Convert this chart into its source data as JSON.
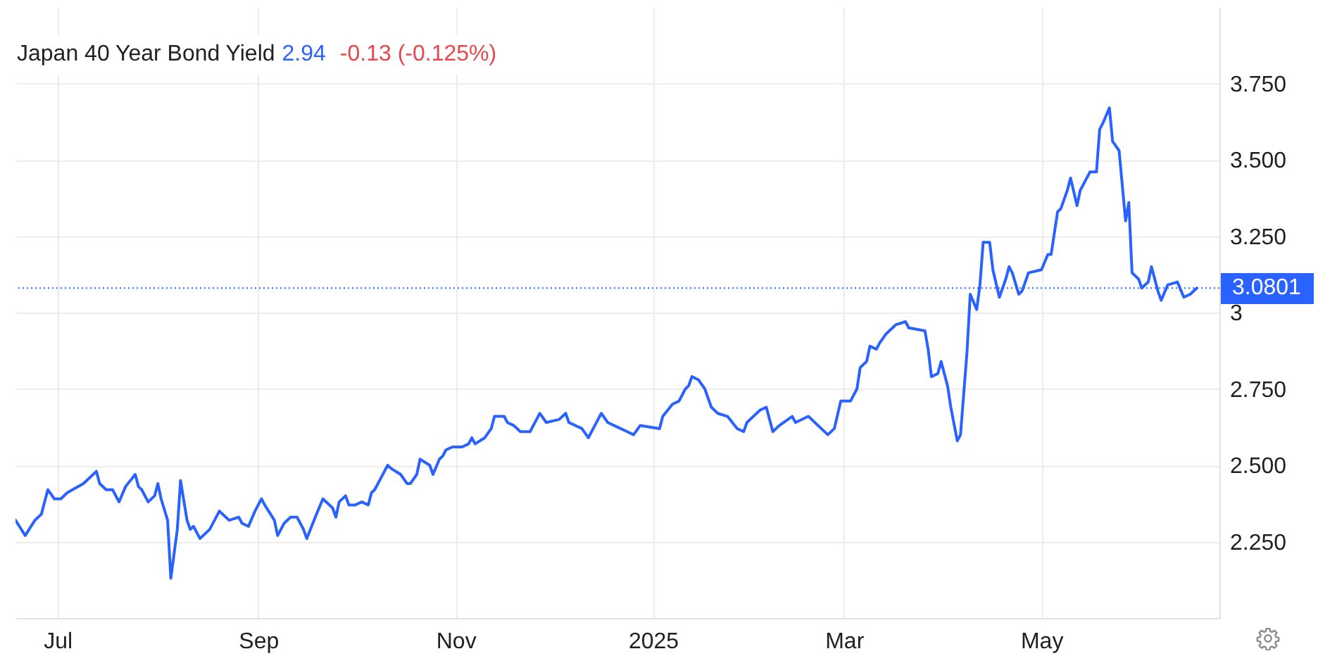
{
  "chart_data": {
    "type": "line",
    "title": "Japan 40 Year Bond Yield",
    "annotations": [
      "2.94",
      "-0.13 (-0.125%)"
    ],
    "x": [
      "2024-06-18",
      "2024-06-21",
      "2024-06-24",
      "2024-06-26",
      "2024-06-28",
      "2024-06-30",
      "2024-07-02",
      "2024-07-04",
      "2024-07-09",
      "2024-07-12",
      "2024-07-13",
      "2024-07-14",
      "2024-07-16",
      "2024-07-18",
      "2024-07-20",
      "2024-07-22",
      "2024-07-25",
      "2024-07-26",
      "2024-07-27",
      "2024-07-29",
      "2024-07-31",
      "2024-08-01",
      "2024-08-02",
      "2024-08-04",
      "2024-08-05",
      "2024-08-07",
      "2024-08-08",
      "2024-08-10",
      "2024-08-11",
      "2024-08-12",
      "2024-08-14",
      "2024-08-17",
      "2024-08-20",
      "2024-08-21",
      "2024-08-23",
      "2024-08-26",
      "2024-08-27",
      "2024-08-29",
      "2024-08-31",
      "2024-09-02",
      "2024-09-03",
      "2024-09-06",
      "2024-09-07",
      "2024-09-09",
      "2024-09-11",
      "2024-09-13",
      "2024-09-15",
      "2024-09-16",
      "2024-09-19",
      "2024-09-21",
      "2024-09-24",
      "2024-09-25",
      "2024-09-26",
      "2024-09-28",
      "2024-09-29",
      "2024-10-01",
      "2024-10-03",
      "2024-10-05",
      "2024-10-06",
      "2024-10-07",
      "2024-10-09",
      "2024-10-11",
      "2024-10-12",
      "2024-10-15",
      "2024-10-17",
      "2024-10-18",
      "2024-10-20",
      "2024-10-21",
      "2024-10-24",
      "2024-10-25",
      "2024-10-27",
      "2024-10-28",
      "2024-10-29",
      "2024-10-31",
      "2024-11-03",
      "2024-11-05",
      "2024-11-06",
      "2024-11-07",
      "2024-11-10",
      "2024-11-12",
      "2024-11-13",
      "2024-11-16",
      "2024-11-17",
      "2024-11-19",
      "2024-11-21",
      "2024-11-24",
      "2024-11-26",
      "2024-11-27",
      "2024-11-29",
      "2024-12-03",
      "2024-12-05",
      "2024-12-06",
      "2024-12-10",
      "2024-12-12",
      "2024-12-14",
      "2024-12-16",
      "2024-12-18",
      "2024-12-20",
      "2024-12-24",
      "2024-12-26",
      "2024-12-28",
      "2025-01-03",
      "2025-01-04",
      "2025-01-07",
      "2025-01-09",
      "2025-01-11",
      "2025-01-12",
      "2025-01-13",
      "2025-01-15",
      "2025-01-17",
      "2025-01-19",
      "2025-01-21",
      "2025-01-24",
      "2025-01-27",
      "2025-01-29",
      "2025-01-30",
      "2025-02-03",
      "2025-02-05",
      "2025-02-07",
      "2025-02-09",
      "2025-02-13",
      "2025-02-14",
      "2025-02-18",
      "2025-02-21",
      "2025-02-24",
      "2025-02-26",
      "2025-02-28",
      "2025-03-03",
      "2025-03-05",
      "2025-03-06",
      "2025-03-08",
      "2025-03-09",
      "2025-03-11",
      "2025-03-12",
      "2025-03-14",
      "2025-03-15",
      "2025-03-17",
      "2025-03-20",
      "2025-03-21",
      "2025-03-26",
      "2025-03-27",
      "2025-03-28",
      "2025-03-30",
      "2025-03-31",
      "2025-04-02",
      "2025-04-03",
      "2025-04-05",
      "2025-04-06",
      "2025-04-08",
      "2025-04-09",
      "2025-04-11",
      "2025-04-12",
      "2025-04-13",
      "2025-04-15",
      "2025-04-16",
      "2025-04-18",
      "2025-04-20",
      "2025-04-21",
      "2025-04-22",
      "2025-04-24",
      "2025-04-25",
      "2025-04-27",
      "2025-05-01",
      "2025-05-03",
      "2025-05-04",
      "2025-05-06",
      "2025-05-07",
      "2025-05-09",
      "2025-05-10",
      "2025-05-12",
      "2025-05-13",
      "2025-05-15",
      "2025-05-16",
      "2025-05-18",
      "2025-05-19",
      "2025-05-20",
      "2025-05-22",
      "2025-05-23",
      "2025-05-25",
      "2025-05-27",
      "2025-05-28",
      "2025-05-29",
      "2025-05-31",
      "2025-06-01",
      "2025-06-03",
      "2025-06-04",
      "2025-06-06",
      "2025-06-07",
      "2025-06-09",
      "2025-06-12",
      "2025-06-14",
      "2025-06-16",
      "2025-06-18"
    ],
    "series": [
      {
        "color": "#2962ff",
        "values": [
          2.32,
          2.27,
          2.32,
          2.34,
          2.42,
          2.39,
          2.39,
          2.41,
          2.44,
          2.47,
          2.48,
          2.44,
          2.42,
          2.42,
          2.38,
          2.43,
          2.47,
          2.43,
          2.42,
          2.38,
          2.4,
          2.44,
          2.39,
          2.32,
          2.13,
          2.29,
          2.45,
          2.32,
          2.29,
          2.3,
          2.26,
          2.29,
          2.35,
          2.34,
          2.32,
          2.33,
          2.31,
          2.3,
          2.35,
          2.39,
          2.37,
          2.32,
          2.27,
          2.31,
          2.33,
          2.33,
          2.29,
          2.26,
          2.34,
          2.39,
          2.36,
          2.33,
          2.38,
          2.4,
          2.37,
          2.37,
          2.38,
          2.37,
          2.41,
          2.42,
          2.46,
          2.5,
          2.49,
          2.47,
          2.44,
          2.44,
          2.47,
          2.52,
          2.5,
          2.47,
          2.52,
          2.53,
          2.55,
          2.56,
          2.56,
          2.57,
          2.59,
          2.57,
          2.59,
          2.62,
          2.66,
          2.66,
          2.64,
          2.63,
          2.61,
          2.61,
          2.65,
          2.67,
          2.64,
          2.65,
          2.67,
          2.64,
          2.62,
          2.59,
          2.63,
          2.67,
          2.64,
          2.63,
          2.61,
          2.6,
          2.63,
          2.62,
          2.66,
          2.7,
          2.71,
          2.75,
          2.76,
          2.79,
          2.78,
          2.75,
          2.69,
          2.67,
          2.66,
          2.62,
          2.61,
          2.64,
          2.68,
          2.69,
          2.61,
          2.63,
          2.66,
          2.64,
          2.66,
          2.63,
          2.6,
          2.62,
          2.71,
          2.71,
          2.75,
          2.82,
          2.84,
          2.89,
          2.88,
          2.9,
          2.93,
          2.94,
          2.96,
          2.97,
          2.95,
          2.94,
          2.88,
          2.79,
          2.8,
          2.84,
          2.76,
          2.69,
          2.58,
          2.6,
          2.87,
          3.06,
          3.01,
          3.09,
          3.23,
          3.23,
          3.14,
          3.05,
          3.11,
          3.15,
          3.13,
          3.06,
          3.07,
          3.13,
          3.14,
          3.19,
          3.19,
          3.33,
          3.34,
          3.4,
          3.44,
          3.35,
          3.4,
          3.44,
          3.46,
          3.46,
          3.6,
          3.62,
          3.67,
          3.56,
          3.53,
          3.3,
          3.36,
          3.13,
          3.11,
          3.08,
          3.1,
          3.15,
          3.07,
          3.04,
          3.09,
          3.1,
          3.05,
          3.06,
          3.08
        ]
      }
    ],
    "xlim": [
      "2024-06-18",
      "2025-06-25"
    ],
    "xticks": [
      {
        "value": "2024-07-01",
        "label": "Jul"
      },
      {
        "value": "2024-09-01",
        "label": "Sep"
      },
      {
        "value": "2024-11-01",
        "label": "Nov"
      },
      {
        "value": "2025-01-01",
        "label": "2025"
      },
      {
        "value": "2025-03-01",
        "label": "Mar"
      },
      {
        "value": "2025-05-01",
        "label": "May"
      }
    ],
    "ylim": [
      2,
      4
    ],
    "yticks": [
      {
        "value": 2.25,
        "label": "2.250"
      },
      {
        "value": 2.5,
        "label": "2.500"
      },
      {
        "value": 2.75,
        "label": "2.750"
      },
      3,
      {
        "value": 3.25,
        "label": "3.250"
      },
      {
        "value": 3.5,
        "label": "3.500"
      },
      {
        "value": 3.75,
        "label": "3.750"
      }
    ],
    "ref_lines": [
      {
        "axis": "y",
        "value": 3.0801,
        "label": "3.0801",
        "color": "#2962ff",
        "line_style": "dotted"
      }
    ],
    "grid": true
  }
}
